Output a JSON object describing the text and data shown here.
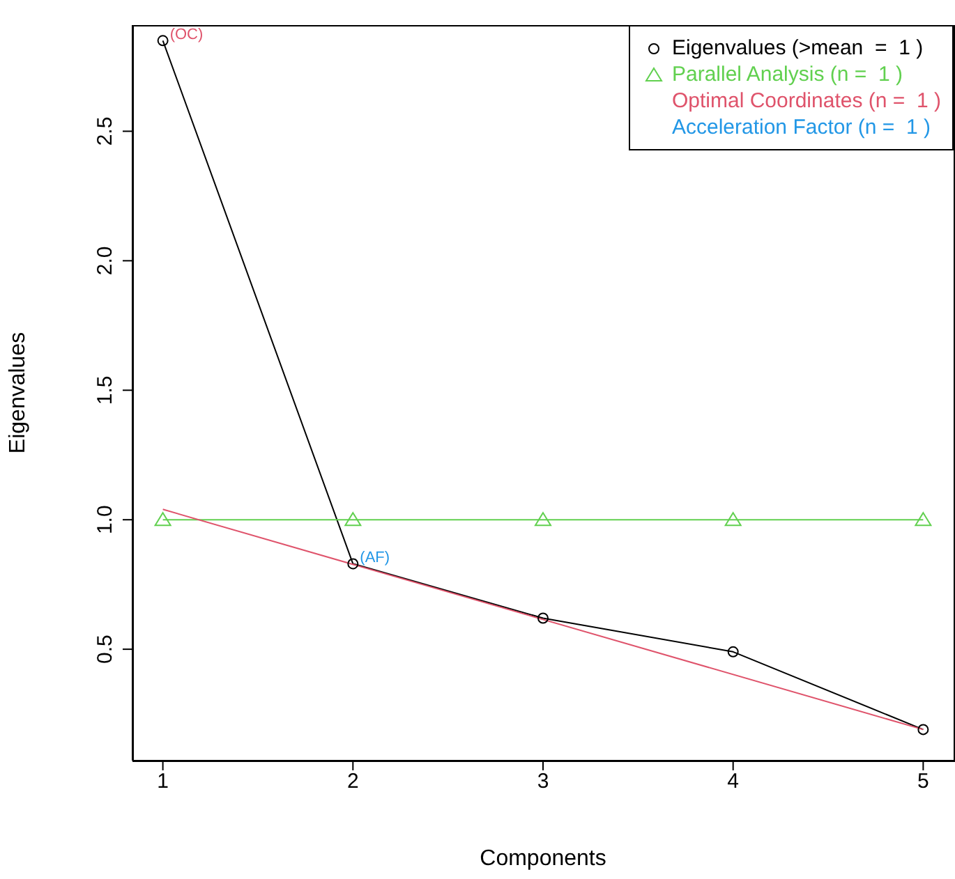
{
  "chart_data": {
    "type": "line",
    "xlabel": "Components",
    "ylabel": "Eigenvalues",
    "x": [
      1,
      2,
      3,
      4,
      5
    ],
    "series": [
      {
        "name": "Eigenvalues (>mean  =  1 )",
        "color": "#000000",
        "marker": "circle",
        "values": [
          2.85,
          0.83,
          0.62,
          0.49,
          0.19
        ]
      },
      {
        "name": "Parallel Analysis (n =  1 )",
        "color": "#61d04f",
        "marker": "triangle",
        "values": [
          1.0,
          1.0,
          1.0,
          1.0,
          1.0
        ]
      },
      {
        "name": "Optimal Coordinates (n =  1 )",
        "color": "#df536b",
        "marker": "none",
        "x": [
          1,
          5
        ],
        "values": [
          1.04,
          0.19
        ]
      },
      {
        "name": "Acceleration Factor (n =  1 )",
        "color": "#2297e6",
        "marker": "none",
        "values": [
          null,
          null,
          null,
          null,
          null
        ]
      }
    ],
    "annotations": [
      {
        "text": "(OC)",
        "x": 1,
        "y": 2.85
      },
      {
        "text": "(AF)",
        "x": 2,
        "y": 0.83
      }
    ],
    "xlim": [
      0.84,
      5.16
    ],
    "xticks": [
      1,
      2,
      3,
      4,
      5
    ],
    "ylim": [
      0.07,
      2.91
    ],
    "yticks": [
      {
        "value": 0.5,
        "label": "0.5"
      },
      {
        "value": 1,
        "label": "1.0"
      },
      {
        "value": 1.5,
        "label": "1.5"
      },
      {
        "value": 2,
        "label": "2.0"
      },
      {
        "value": 2.5,
        "label": "2.5"
      }
    ],
    "grid": false,
    "legend": "top right"
  }
}
